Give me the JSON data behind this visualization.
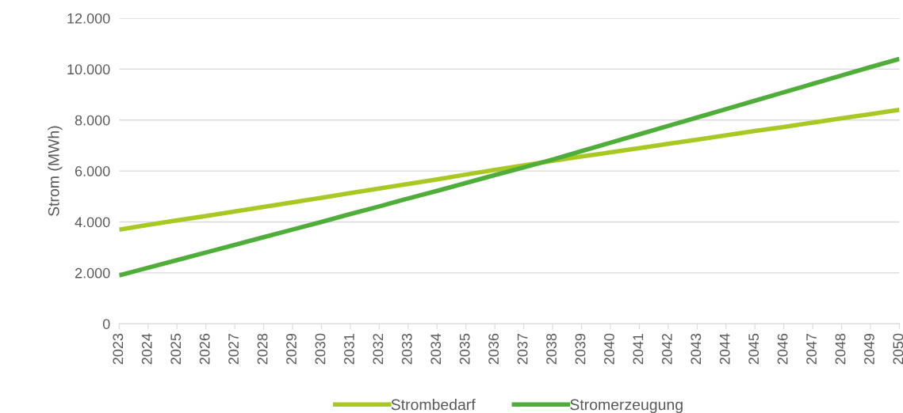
{
  "chart_data": {
    "type": "line",
    "ylabel": "Strom (MWh)",
    "categories": [
      "2023",
      "2024",
      "2025",
      "2026",
      "2027",
      "2028",
      "2029",
      "2030",
      "2031",
      "2032",
      "2033",
      "2034",
      "2035",
      "2036",
      "2037",
      "2038",
      "2039",
      "2040",
      "2041",
      "2042",
      "2043",
      "2044",
      "2045",
      "2046",
      "2047",
      "2048",
      "2049",
      "2050"
    ],
    "series": [
      {
        "name": "Strombedarf",
        "color": "#a8c923",
        "values": [
          3700,
          3880,
          4060,
          4230,
          4410,
          4590,
          4770,
          4950,
          5130,
          5310,
          5490,
          5670,
          5860,
          6040,
          6220,
          6400,
          6570,
          6730,
          6900,
          7070,
          7230,
          7400,
          7570,
          7730,
          7900,
          8070,
          8230,
          8400
        ]
      },
      {
        "name": "Stromerzeugung",
        "color": "#4fae3a",
        "values": [
          1900,
          2200,
          2500,
          2800,
          3100,
          3400,
          3700,
          4000,
          4310,
          4610,
          4920,
          5220,
          5530,
          5840,
          6140,
          6450,
          6780,
          7110,
          7440,
          7770,
          8100,
          8430,
          8760,
          9090,
          9420,
          9750,
          10080,
          10400
        ]
      }
    ],
    "ylim": [
      0,
      12000
    ],
    "yticks": [
      {
        "value": 0,
        "label": "0"
      },
      {
        "value": 2000,
        "label": "2.000"
      },
      {
        "value": 4000,
        "label": "4.000"
      },
      {
        "value": 6000,
        "label": "6.000"
      },
      {
        "value": 8000,
        "label": "8.000"
      },
      {
        "value": 10000,
        "label": "10.000"
      },
      {
        "value": 12000,
        "label": "12.000"
      }
    ],
    "grid": "y",
    "legend": "bottom",
    "marker": "none",
    "line_style": "solid"
  }
}
